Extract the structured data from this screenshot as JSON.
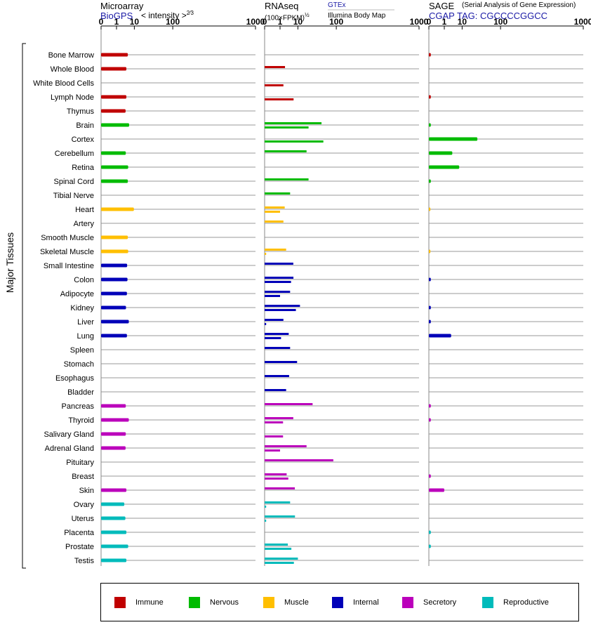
{
  "headers": {
    "microarray_title": "Microarray",
    "microarray_source": "BioGPS",
    "microarray_scale": "< intensity >",
    "microarray_scale_exp": "2⁄3",
    "rnaseq_title": "RNAseq",
    "rnaseq_unit": "(100×FPKM)",
    "rnaseq_unit_exp": "½",
    "rnaseq_source_1": "GTEx",
    "rnaseq_source_2": "Illumina Body Map",
    "sage_title": "SAGE",
    "sage_subtitle": "(Serial Analysis of Gene Expression)",
    "sage_tag": "CGAP  TAG: CGCCCCGGCC"
  },
  "axis_label": "Major Tissues",
  "colors": {
    "Immune": "#c00000",
    "Nervous": "#00bb00",
    "Muscle": "#ffbf00",
    "Internal": "#0000b8",
    "Secretory": "#bb00bb",
    "Reproductive": "#00bbbb"
  },
  "legend": [
    {
      "label": "Immune",
      "group": "Immune"
    },
    {
      "label": "Nervous",
      "group": "Nervous"
    },
    {
      "label": "Muscle",
      "group": "Muscle"
    },
    {
      "label": "Internal",
      "group": "Internal"
    },
    {
      "label": "Secretory",
      "group": "Secretory"
    },
    {
      "label": "Reproductive",
      "group": "Reproductive"
    }
  ],
  "chart_data": {
    "type": "bar",
    "orientation": "horizontal",
    "x_scale": "power 1/3",
    "xlim": [
      0,
      1000
    ],
    "ticks": [
      0,
      1,
      10,
      100,
      1000
    ],
    "categories": [
      "Bone Marrow",
      "Whole Blood",
      "White Blood Cells",
      "Lymph Node",
      "Thymus",
      "Brain",
      "Cortex",
      "Cerebellum",
      "Retina",
      "Spinal Cord",
      "Tibial Nerve",
      "Heart",
      "Artery",
      "Smooth Muscle",
      "Skeletal Muscle",
      "Small Intestine",
      "Colon",
      "Adipocyte",
      "Kidney",
      "Liver",
      "Lung",
      "Spleen",
      "Stomach",
      "Esophagus",
      "Bladder",
      "Pancreas",
      "Thyroid",
      "Salivary Gland",
      "Adrenal Gland",
      "Pituitary",
      "Breast",
      "Skin",
      "Ovary",
      "Uterus",
      "Placenta",
      "Prostate",
      "Testis"
    ],
    "groups": [
      "Immune",
      "Immune",
      "Immune",
      "Immune",
      "Immune",
      "Nervous",
      "Nervous",
      "Nervous",
      "Nervous",
      "Nervous",
      "Nervous",
      "Muscle",
      "Muscle",
      "Muscle",
      "Muscle",
      "Internal",
      "Internal",
      "Internal",
      "Internal",
      "Internal",
      "Internal",
      "Internal",
      "Internal",
      "Internal",
      "Internal",
      "Secretory",
      "Secretory",
      "Secretory",
      "Secretory",
      "Secretory",
      "Secretory",
      "Secretory",
      "Reproductive",
      "Reproductive",
      "Reproductive",
      "Reproductive",
      "Reproductive"
    ],
    "panels": [
      {
        "name": "Microarray",
        "series": [
          {
            "name": "BioGPS",
            "values": [
              5.2,
              4.4,
              null,
              4.4,
              4.0,
              6.0,
              null,
              4.1,
              5.4,
              5.2,
              null,
              9.6,
              null,
              5.2,
              5.4,
              4.8,
              5.0,
              4.7,
              4.2,
              5.8,
              4.7,
              null,
              null,
              null,
              null,
              4.1,
              5.8,
              4.1,
              4.0,
              null,
              null,
              4.4,
              3.4,
              3.9,
              4.4,
              5.4,
              4.4
            ]
          }
        ]
      },
      {
        "name": "RNAseq",
        "series": [
          {
            "name": "GTEx",
            "values": [
              null,
              2.3,
              null,
              null,
              null,
              50,
              null,
              20,
              null,
              23,
              4.5,
              2.2,
              1.8,
              null,
              2.7,
              6.4,
              6.5,
              4.5,
              12,
              1.8,
              3.8,
              4.5,
              9.3,
              4.0,
              2.7,
              30,
              6.4,
              null,
              20,
              88,
              2.9,
              7.5,
              4.5,
              7.6,
              null,
              3.4,
              10
            ]
          },
          {
            "name": "Illumina Body Map",
            "values": [
              null,
              null,
              1.8,
              6.6,
              null,
              23,
              55,
              null,
              null,
              null,
              null,
              1.0,
              null,
              null,
              0.001,
              null,
              5.0,
              1.0,
              8.3,
              0.001,
              1.2,
              null,
              null,
              null,
              null,
              null,
              1.7,
              1.7,
              1.0,
              null,
              3.6,
              null,
              0.001,
              0.001,
              null,
              5.2,
              6.8
            ]
          }
        ]
      },
      {
        "name": "SAGE",
        "series": [
          {
            "name": "CGAP",
            "values": [
              0.002,
              null,
              null,
              0.002,
              null,
              0.002,
              31,
              3.5,
              7.6,
              0.002,
              null,
              0.001,
              null,
              null,
              0.001,
              null,
              0.002,
              null,
              0.002,
              0.002,
              3.0,
              null,
              null,
              null,
              null,
              0.002,
              0.002,
              null,
              null,
              null,
              0.002,
              1.0,
              null,
              null,
              0.002,
              0.002,
              null
            ]
          }
        ]
      }
    ]
  }
}
